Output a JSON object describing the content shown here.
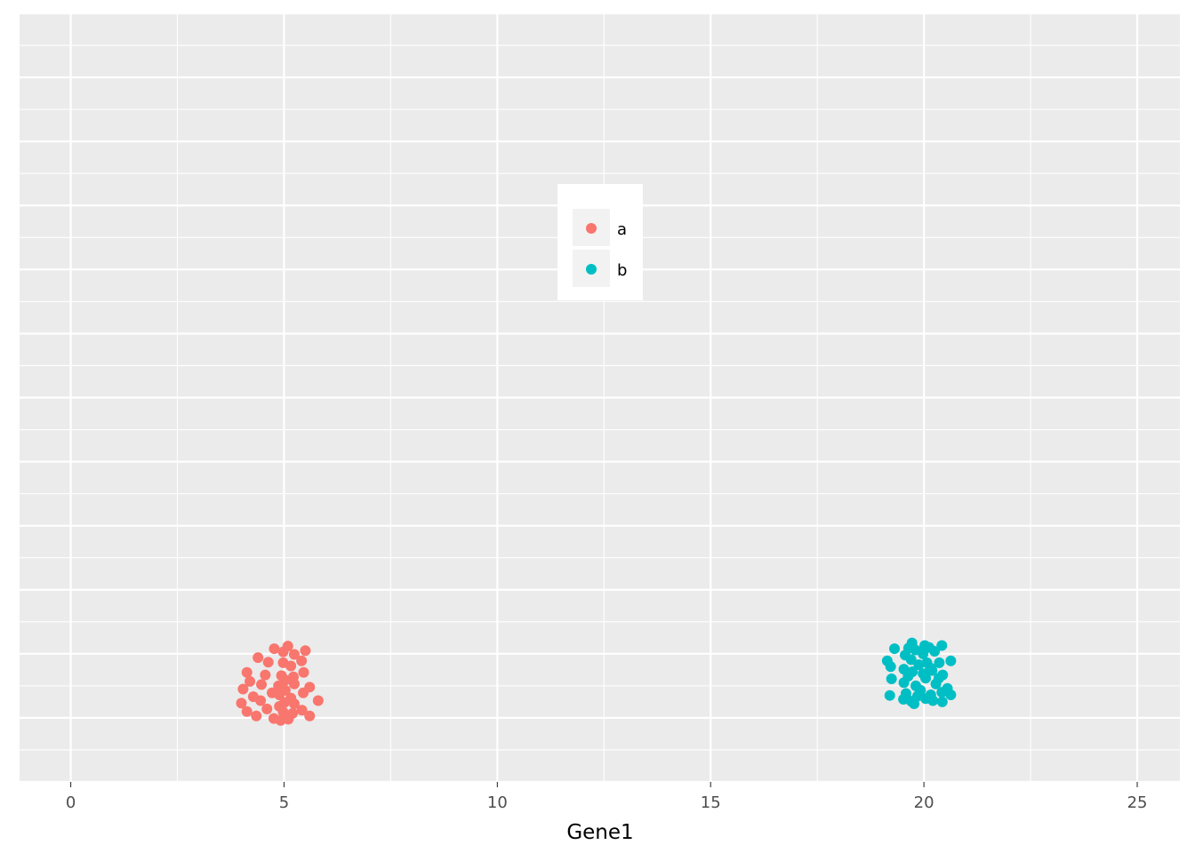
{
  "chart_data": {
    "type": "scatter",
    "title": "",
    "xlabel": "Gene1",
    "ylabel": "",
    "xlim": [
      -1.2,
      26.0
    ],
    "ylim": [
      0,
      12
    ],
    "x_ticks": [
      "0",
      "5",
      "10",
      "15",
      "20",
      "25"
    ],
    "x_tick_values": [
      0,
      5,
      10,
      15,
      20,
      25
    ],
    "grid": true,
    "legend_position": "inside-top-center",
    "series": [
      {
        "name": "a",
        "color": "#F8766D",
        "points": [
          [
            4.77,
            2.08
          ],
          [
            5.09,
            2.12
          ],
          [
            5.5,
            2.05
          ],
          [
            4.98,
            2.03
          ],
          [
            5.24,
            1.99
          ],
          [
            4.39,
            1.94
          ],
          [
            5.41,
            1.89
          ],
          [
            4.63,
            1.87
          ],
          [
            4.98,
            1.86
          ],
          [
            5.16,
            1.81
          ],
          [
            4.13,
            1.71
          ],
          [
            5.46,
            1.71
          ],
          [
            4.56,
            1.67
          ],
          [
            4.94,
            1.66
          ],
          [
            5.22,
            1.64
          ],
          [
            4.2,
            1.57
          ],
          [
            5.03,
            1.59
          ],
          [
            4.47,
            1.52
          ],
          [
            4.87,
            1.5
          ],
          [
            5.24,
            1.53
          ],
          [
            5.6,
            1.48
          ],
          [
            4.04,
            1.45
          ],
          [
            5.03,
            1.43
          ],
          [
            4.72,
            1.39
          ],
          [
            5.45,
            1.39
          ],
          [
            4.89,
            1.36
          ],
          [
            4.28,
            1.33
          ],
          [
            5.16,
            1.31
          ],
          [
            5.8,
            1.27
          ],
          [
            4.0,
            1.23
          ],
          [
            4.45,
            1.27
          ],
          [
            5.01,
            1.24
          ],
          [
            5.24,
            1.22
          ],
          [
            4.89,
            1.18
          ],
          [
            4.6,
            1.14
          ],
          [
            5.42,
            1.12
          ],
          [
            4.13,
            1.1
          ],
          [
            4.98,
            1.09
          ],
          [
            5.2,
            1.07
          ],
          [
            4.35,
            1.03
          ],
          [
            5.6,
            1.03
          ],
          [
            4.76,
            0.99
          ],
          [
            5.1,
            0.98
          ],
          [
            4.92,
            0.96
          ]
        ]
      },
      {
        "name": "b",
        "color": "#00BFC4",
        "points": [
          [
            19.72,
            2.17
          ],
          [
            20.02,
            2.13
          ],
          [
            20.42,
            2.13
          ],
          [
            19.64,
            2.09
          ],
          [
            20.12,
            2.1
          ],
          [
            19.31,
            2.08
          ],
          [
            19.8,
            2.06
          ],
          [
            20.25,
            2.04
          ],
          [
            19.98,
            2.0
          ],
          [
            19.56,
            1.98
          ],
          [
            19.14,
            1.89
          ],
          [
            20.63,
            1.89
          ],
          [
            19.7,
            1.91
          ],
          [
            20.07,
            1.86
          ],
          [
            20.36,
            1.86
          ],
          [
            19.22,
            1.8
          ],
          [
            19.88,
            1.83
          ],
          [
            19.53,
            1.76
          ],
          [
            20.15,
            1.78
          ],
          [
            20.19,
            1.74
          ],
          [
            19.73,
            1.72
          ],
          [
            19.98,
            1.69
          ],
          [
            20.44,
            1.67
          ],
          [
            19.63,
            1.65
          ],
          [
            20.35,
            1.62
          ],
          [
            19.24,
            1.61
          ],
          [
            20.04,
            1.62
          ],
          [
            19.53,
            1.55
          ],
          [
            20.28,
            1.53
          ],
          [
            19.81,
            1.5
          ],
          [
            20.55,
            1.46
          ],
          [
            19.92,
            1.43
          ],
          [
            20.42,
            1.4
          ],
          [
            19.58,
            1.38
          ],
          [
            20.16,
            1.36
          ],
          [
            19.2,
            1.35
          ],
          [
            20.63,
            1.36
          ],
          [
            19.85,
            1.34
          ],
          [
            20.04,
            1.3
          ],
          [
            19.52,
            1.29
          ],
          [
            20.21,
            1.27
          ],
          [
            19.7,
            1.26
          ],
          [
            20.43,
            1.25
          ],
          [
            19.77,
            1.22
          ]
        ]
      }
    ]
  }
}
